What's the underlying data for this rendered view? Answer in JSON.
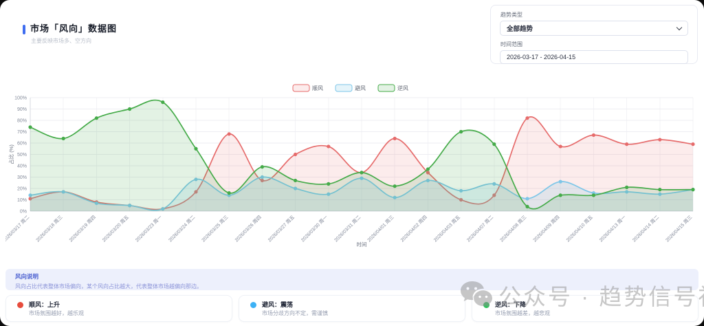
{
  "header": {
    "title": "市场「风向」数据图",
    "subtitle": "主要反映市场多、空方向"
  },
  "controls": {
    "trend_type_label": "趋势类型",
    "trend_type_value": "全部趋势",
    "time_range_label": "时间范围",
    "time_range_value": "2026-03-17 - 2026-04-15"
  },
  "chart_data": {
    "type": "area",
    "title": "",
    "xlabel": "时间",
    "ylabel": "占比 (%)",
    "ylim": [
      0,
      100
    ],
    "ytick_step": 10,
    "grid": true,
    "legend_position": "top",
    "x": [
      "2026/03/17 周二",
      "2026/03/18 周三",
      "2026/03/19 周四",
      "2026/03/20 周五",
      "2026/03/23 周一",
      "2026/03/24 周二",
      "2026/03/25 周三",
      "2026/03/26 周四",
      "2026/03/27 周五",
      "2026/03/30 周一",
      "2026/03/31 周二",
      "2026/04/01 周三",
      "2026/04/02 周四",
      "2026/04/03 周五",
      "2026/04/07 周二",
      "2026/04/08 周三",
      "2026/04/09 周四",
      "2026/04/10 周五",
      "2026/04/13 周一",
      "2026/04/14 周二",
      "2026/04/15 周三"
    ],
    "series": [
      {
        "name": "顺风",
        "key": "tailwind",
        "color": "#e66b6b",
        "fill": "rgba(230,107,107,0.13)",
        "values": [
          11,
          17,
          8,
          5,
          2,
          17,
          68,
          27,
          50,
          57,
          34,
          64,
          34,
          10,
          14,
          82,
          57,
          67,
          59,
          63,
          59
        ]
      },
      {
        "name": "避风",
        "key": "shelter",
        "color": "#7dc6e8",
        "fill": "rgba(125,198,232,0.20)",
        "values": [
          14,
          17,
          7,
          5,
          2,
          28,
          14,
          30,
          20,
          15,
          29,
          12,
          27,
          18,
          24,
          11,
          26,
          16,
          17,
          15,
          19
        ]
      },
      {
        "name": "逆风",
        "key": "headwind",
        "color": "#45ab49",
        "fill": "rgba(69,171,73,0.15)",
        "values": [
          74,
          64,
          82,
          90,
          96,
          55,
          16,
          39,
          27,
          24,
          34,
          22,
          37,
          70,
          59,
          4,
          14,
          14,
          21,
          19,
          19
        ]
      }
    ]
  },
  "explanation": {
    "title": "风向说明",
    "description": "风向占比代表整体市场偏向，某个风向占比越大，代表整体市场越偏向那边。"
  },
  "cards": [
    {
      "color": "#e74c3c",
      "title": "顺风：上升",
      "desc": "市场氛围越好，越乐观"
    },
    {
      "color": "#3db1f5",
      "title": "避风：震荡",
      "desc": "市场分歧方向不定，需谨慎"
    },
    {
      "color": "#2fc25b",
      "title": "逆风：下降",
      "desc": "市场氛围越差，越悲观"
    }
  ],
  "watermark": {
    "text": "公众号 · 趋势信号社"
  }
}
